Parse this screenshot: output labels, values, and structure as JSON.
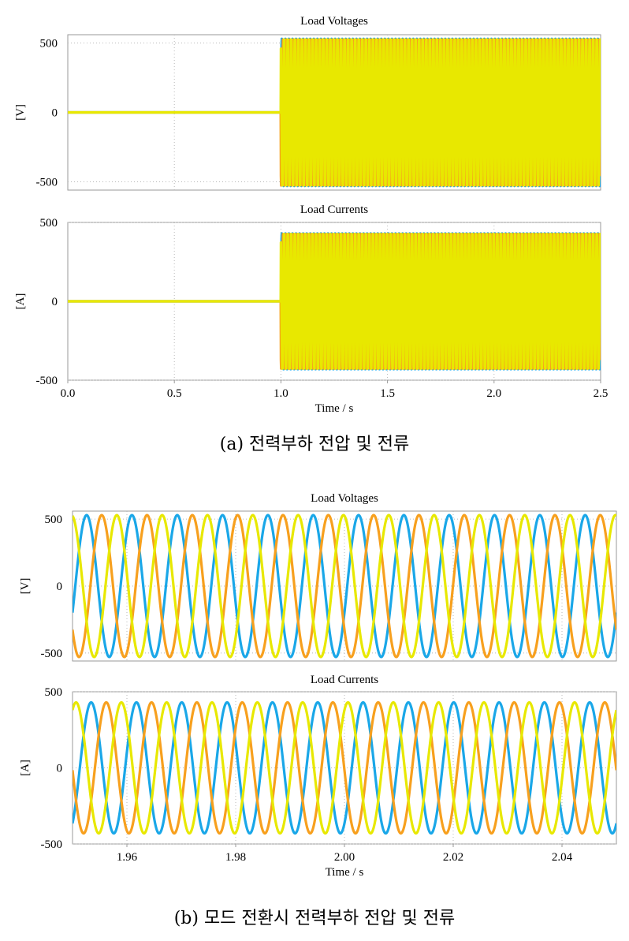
{
  "figure_a": {
    "caption": "(a)  전력부하  전압  및  전류"
  },
  "figure_b": {
    "caption": "(b)  모드  전환시  전력부하  전압  및  전류"
  },
  "chart_data": [
    {
      "id": "a-voltage",
      "type": "line",
      "title": "Load Voltages",
      "ylabel": "[V]",
      "xlabel": "",
      "xlim": [
        0.0,
        2.5
      ],
      "ylim": [
        -560,
        560
      ],
      "yticks": [
        500,
        0,
        -500
      ],
      "xticks": [],
      "grid": true,
      "legend": "none",
      "frequency_hz": 60,
      "series": [
        {
          "color": "#1aa7e8",
          "amplitude": 530,
          "phase_deg": 0,
          "start_time": 1.0
        },
        {
          "color": "#f7a01e",
          "amplitude": 530,
          "phase_deg": -120,
          "start_time": 1.0
        },
        {
          "color": "#e8e800",
          "amplitude": 530,
          "phase_deg": 120,
          "start_time": 1.0
        }
      ]
    },
    {
      "id": "a-current",
      "type": "line",
      "title": "Load Currents",
      "ylabel": "[A]",
      "xlabel": "Time / s",
      "xlim": [
        0.0,
        2.5
      ],
      "ylim": [
        -500,
        500
      ],
      "yticks": [
        500,
        0,
        -500
      ],
      "xticks": [
        0.0,
        0.5,
        1.0,
        1.5,
        2.0,
        2.5
      ],
      "xtick_labels": [
        "0.0",
        "0.5",
        "1.0",
        "1.5",
        "2.0",
        "2.5"
      ],
      "grid": true,
      "legend": "none",
      "frequency_hz": 60,
      "series": [
        {
          "color": "#1aa7e8",
          "amplitude": 430,
          "phase_deg": 0,
          "start_time": 1.0
        },
        {
          "color": "#f7a01e",
          "amplitude": 430,
          "phase_deg": -120,
          "start_time": 1.0
        },
        {
          "color": "#e8e800",
          "amplitude": 430,
          "phase_deg": 120,
          "start_time": 1.0
        }
      ]
    },
    {
      "id": "b-voltage",
      "type": "line",
      "title": "Load Voltages",
      "ylabel": "[V]",
      "xlabel": "",
      "xlim": [
        1.95,
        2.05
      ],
      "ylim": [
        -560,
        560
      ],
      "yticks": [
        500,
        0,
        -500
      ],
      "xticks": [],
      "grid": true,
      "legend": "none",
      "frequency_hz": 120,
      "series": [
        {
          "color": "#1aa7e8",
          "amplitude": 530,
          "phase_deg": -22,
          "start_time": 0
        },
        {
          "color": "#f7a01e",
          "amplitude": 530,
          "phase_deg": -142,
          "start_time": 0
        },
        {
          "color": "#e8e800",
          "amplitude": 530,
          "phase_deg": 98,
          "start_time": 0
        }
      ]
    },
    {
      "id": "b-current",
      "type": "line",
      "title": "Load Currents",
      "ylabel": "[A]",
      "xlabel": "Time / s",
      "xlim": [
        1.95,
        2.05
      ],
      "ylim": [
        -500,
        500
      ],
      "yticks": [
        500,
        0,
        -500
      ],
      "xticks": [
        1.96,
        1.98,
        2.0,
        2.02,
        2.04
      ],
      "xtick_labels": [
        "1.96",
        "1.98",
        "2.00",
        "2.02",
        "2.04"
      ],
      "grid": true,
      "legend": "none",
      "frequency_hz": 120,
      "series": [
        {
          "color": "#1aa7e8",
          "amplitude": 430,
          "phase_deg": -58,
          "start_time": 0
        },
        {
          "color": "#f7a01e",
          "amplitude": 430,
          "phase_deg": -178,
          "start_time": 0
        },
        {
          "color": "#e8e800",
          "amplitude": 430,
          "phase_deg": 62,
          "start_time": 0
        }
      ]
    }
  ]
}
